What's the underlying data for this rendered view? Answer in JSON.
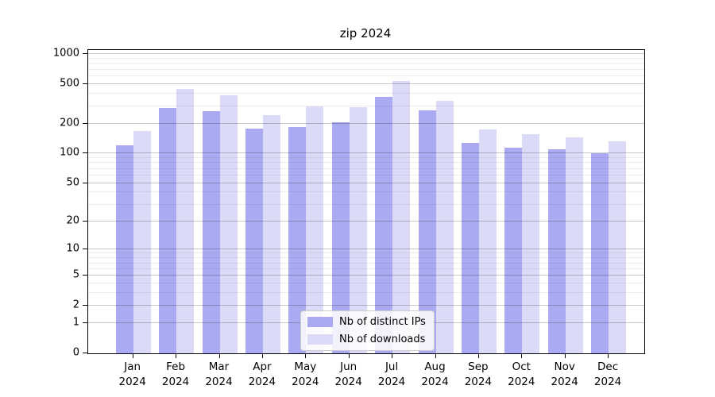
{
  "title": "zip 2024",
  "colors": {
    "distinct_ips_bar": "#aaaaf2",
    "downloads_bar": "#dbdbf8",
    "axis": "#000000",
    "major_grid": "#c9c9c9",
    "minor_grid": "#e9e9e9",
    "legend_border": "#cccccc"
  },
  "y_axis": {
    "tick_labels": [
      "0",
      "1",
      "2",
      "5",
      "10",
      "20",
      "50",
      "100",
      "200",
      "500",
      "1000"
    ],
    "scale": "log(1+y)",
    "ylim": [
      0,
      1100
    ]
  },
  "legend": {
    "items": [
      {
        "label": "Nb of distinct IPs",
        "color_key": "distinct_ips_bar"
      },
      {
        "label": "Nb of downloads",
        "color_key": "downloads_bar"
      }
    ],
    "position": "lower center"
  },
  "chart_data": {
    "type": "bar",
    "title": "zip 2024",
    "categories": [
      "Jan 2024",
      "Feb 2024",
      "Mar 2024",
      "Apr 2024",
      "May 2024",
      "Jun 2024",
      "Jul 2024",
      "Aug 2024",
      "Sep 2024",
      "Oct 2024",
      "Nov 2024",
      "Dec 2024"
    ],
    "series": [
      {
        "name": "Nb of distinct IPs",
        "values": [
          122,
          288,
          270,
          180,
          184,
          205,
          372,
          275,
          128,
          115,
          110,
          100
        ]
      },
      {
        "name": "Nb of downloads",
        "values": [
          168,
          448,
          390,
          245,
          300,
          295,
          537,
          340,
          176,
          157,
          146,
          132
        ]
      }
    ],
    "xlabel": "",
    "ylabel": "",
    "yticks": [
      0,
      1,
      2,
      5,
      10,
      20,
      50,
      100,
      200,
      500,
      1000
    ],
    "ylim": [
      0,
      1100
    ],
    "yscale": "log1p",
    "grid": "horizontal major+minor, drawn over translucent bars",
    "legend_position": "lower center"
  }
}
